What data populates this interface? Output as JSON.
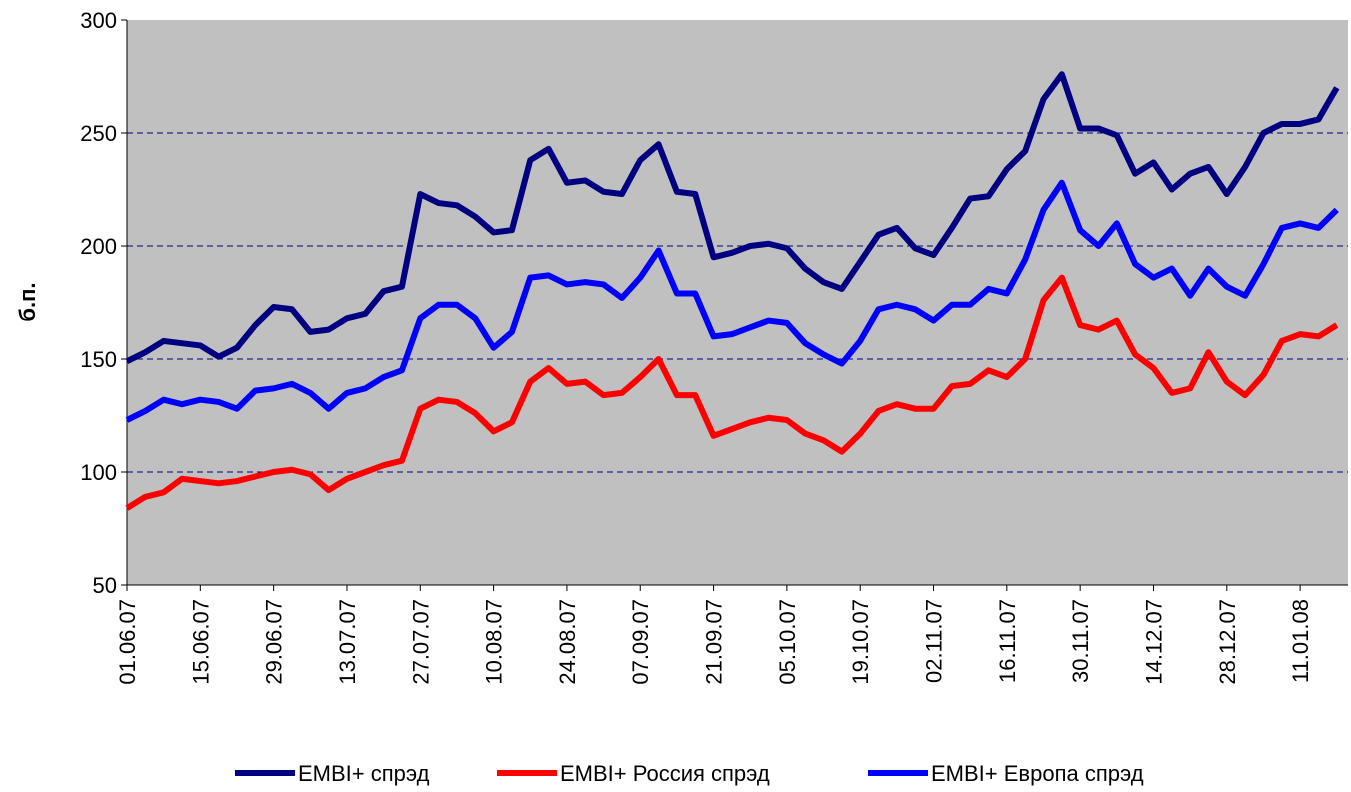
{
  "chart_data": {
    "type": "line",
    "y_label": "б.п.",
    "categories": [
      "01.06.07",
      null,
      null,
      null,
      "15.06.07",
      null,
      null,
      null,
      "29.06.07",
      null,
      null,
      null,
      "13.07.07",
      null,
      null,
      null,
      "27.07.07",
      null,
      null,
      null,
      "10.08.07",
      null,
      null,
      null,
      "24.08.07",
      null,
      null,
      null,
      "07.09.07",
      null,
      null,
      null,
      "21.09.07",
      null,
      null,
      null,
      "05.10.07",
      null,
      null,
      null,
      "19.10.07",
      null,
      null,
      null,
      "02.11.07",
      null,
      null,
      null,
      "16.11.07",
      null,
      null,
      null,
      "30.11.07",
      null,
      null,
      null,
      "14.12.07",
      null,
      null,
      null,
      "28.12.07",
      null,
      null,
      null,
      "11.01.08",
      null,
      null
    ],
    "series": [
      {
        "name": "EMBI+ спрэд",
        "color": "#000080",
        "values": [
          149,
          153,
          158,
          157,
          156,
          151,
          155,
          165,
          173,
          172,
          162,
          163,
          168,
          170,
          180,
          182,
          223,
          219,
          218,
          213,
          206,
          207,
          238,
          243,
          228,
          229,
          224,
          223,
          238,
          245,
          224,
          223,
          195,
          197,
          200,
          201,
          199,
          190,
          184,
          181,
          193,
          205,
          208,
          199,
          196,
          208,
          221,
          222,
          234,
          242,
          265,
          276,
          252,
          252,
          249,
          232,
          237,
          225,
          232,
          235,
          223,
          235,
          250,
          254,
          254,
          256,
          270
        ]
      },
      {
        "name": "EMBI+ Россия спрэд",
        "color": "#ff0000",
        "values": [
          84,
          89,
          91,
          97,
          96,
          95,
          96,
          98,
          100,
          101,
          99,
          92,
          97,
          100,
          103,
          105,
          128,
          132,
          131,
          126,
          118,
          122,
          140,
          146,
          139,
          140,
          134,
          135,
          142,
          150,
          134,
          134,
          116,
          119,
          122,
          124,
          123,
          117,
          114,
          109,
          117,
          127,
          130,
          128,
          128,
          138,
          139,
          145,
          142,
          150,
          176,
          186,
          165,
          163,
          167,
          152,
          146,
          135,
          137,
          153,
          140,
          134,
          143,
          158,
          161,
          160,
          165
        ]
      },
      {
        "name": "EMBI+ Европа спрэд",
        "color": "#0000ff",
        "values": [
          123,
          127,
          132,
          130,
          132,
          131,
          128,
          136,
          137,
          139,
          135,
          128,
          135,
          137,
          142,
          145,
          168,
          174,
          174,
          168,
          155,
          162,
          186,
          187,
          183,
          184,
          183,
          177,
          186,
          198,
          179,
          179,
          160,
          161,
          164,
          167,
          166,
          157,
          152,
          148,
          158,
          172,
          174,
          172,
          167,
          174,
          174,
          181,
          179,
          194,
          216,
          228,
          207,
          200,
          210,
          192,
          186,
          190,
          178,
          190,
          182,
          178,
          192,
          208,
          210,
          208,
          216
        ]
      }
    ],
    "ylim": [
      50,
      300
    ],
    "yticks": [
      50,
      100,
      150,
      200,
      250,
      300
    ],
    "grid": true
  }
}
